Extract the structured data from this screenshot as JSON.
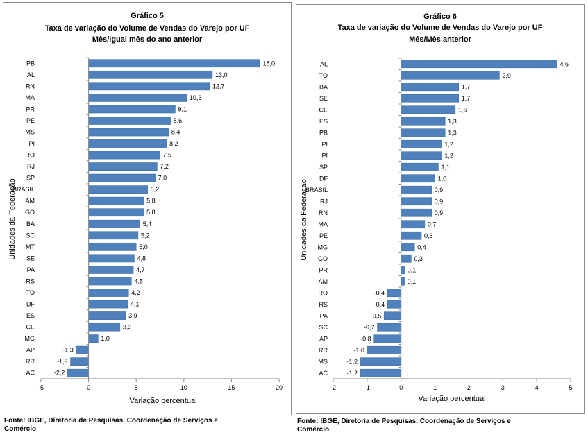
{
  "chart_data": [
    {
      "type": "bar",
      "orientation": "horizontal",
      "title": [
        "Gráfico 5",
        "Taxa de variação do Volume de Vendas do Varejo por UF",
        "Mês/Igual mês do ano anterior"
      ],
      "xlabel": "Variação percentual",
      "ylabel": "Unidades da Federação",
      "categories": [
        "PB",
        "AL",
        "RN",
        "MA",
        "PR",
        "PE",
        "MS",
        "PI",
        "RO",
        "RJ",
        "SP",
        "BRASIL",
        "AM",
        "GO",
        "BA",
        "SC",
        "MT",
        "SE",
        "PA",
        "RS",
        "TO",
        "DF",
        "ES",
        "CE",
        "MG",
        "AP",
        "RR",
        "AC"
      ],
      "values": [
        18.0,
        13.0,
        12.7,
        10.3,
        9.1,
        8.6,
        8.4,
        8.2,
        7.5,
        7.2,
        7.0,
        6.2,
        5.8,
        5.8,
        5.4,
        5.2,
        5.0,
        4.8,
        4.7,
        4.5,
        4.2,
        4.1,
        3.9,
        3.3,
        1.0,
        -1.3,
        -1.9,
        -2.2
      ],
      "value_labels": [
        "18,0",
        "13,0",
        "12,7",
        "10,3",
        "9,1",
        "8,6",
        "8,4",
        "8,2",
        "7,5",
        "7,2",
        "7,0",
        "6,2",
        "5,8",
        "5,8",
        "5,4",
        "5,2",
        "5,0",
        "4,8",
        "4,7",
        "4,5",
        "4,2",
        "4,1",
        "3,9",
        "3,3",
        "1,0",
        "-1,3",
        "-1,9",
        "-2,2"
      ],
      "xlim": [
        -5,
        20
      ],
      "xticks": [
        -5,
        0,
        5,
        10,
        15,
        20
      ],
      "xtick_labels": [
        "-5",
        "0",
        "5",
        "10",
        "15",
        "20"
      ],
      "color": "#4f81bd",
      "grid": false
    },
    {
      "type": "bar",
      "orientation": "horizontal",
      "title": [
        "Gráfico 6",
        "Taxa de variação do Volume de Vendas do Varejo por UF",
        "Mês/Mês anterior"
      ],
      "xlabel": "Variação percentual",
      "ylabel": "Unidades da Federação",
      "categories": [
        "AL",
        "TO",
        "BA",
        "SE",
        "CE",
        "ES",
        "PB",
        "PI",
        "PI",
        "SP",
        "DF",
        "BRASIL",
        "RJ",
        "RN",
        "MA",
        "PE",
        "MG",
        "GO",
        "PR",
        "AM",
        "RO",
        "RS",
        "PA",
        "SC",
        "AP",
        "RR",
        "MS",
        "AC"
      ],
      "values": [
        4.6,
        2.9,
        1.7,
        1.7,
        1.6,
        1.3,
        1.3,
        1.2,
        1.2,
        1.1,
        1.0,
        0.9,
        0.9,
        0.9,
        0.7,
        0.6,
        0.4,
        0.3,
        0.1,
        0.1,
        -0.4,
        -0.4,
        -0.5,
        -0.7,
        -0.8,
        -1.0,
        -1.2,
        -1.2
      ],
      "value_labels": [
        "4,6",
        "2,9",
        "1,7",
        "1,7",
        "1,6",
        "1,3",
        "1,3",
        "1,2",
        "1,2",
        "1,1",
        "1,0",
        "0,9",
        "0,9",
        "0,9",
        "0,7",
        "0,6",
        "0,4",
        "0,3",
        "0,1",
        "0,1",
        "-0,4",
        "-0,4",
        "-0,5",
        "-0,7",
        "-0,8",
        "-1,0",
        "-1,2",
        "-1,2"
      ],
      "xlim": [
        -2,
        5
      ],
      "xticks": [
        -2,
        -1,
        0,
        1,
        2,
        3,
        4,
        5
      ],
      "xtick_labels": [
        "-2",
        "-1",
        "0",
        "1",
        "2",
        "3",
        "4",
        "5"
      ],
      "color": "#4f81bd",
      "grid": false
    }
  ],
  "source_left": [
    "Fonte: IBGE, Diretoria de Pesquisas,  Coordenação de Serviços e",
    "Comércio"
  ],
  "source_right": [
    "Fonte: IBGE, Diretoria de Pesquisas,  Coordenação de Serviços e",
    "Comércio"
  ]
}
